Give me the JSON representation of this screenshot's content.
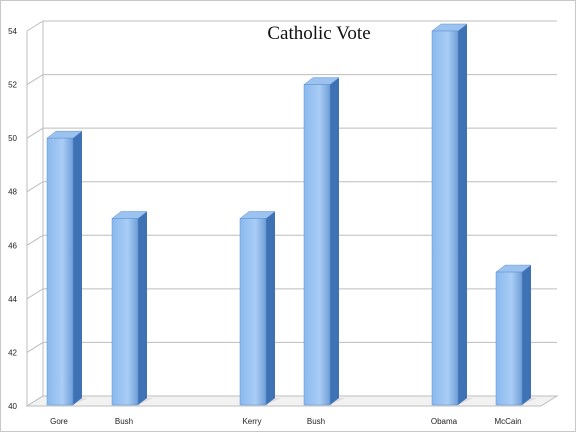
{
  "chart_data": {
    "type": "bar",
    "title": "Catholic Vote",
    "categories": [
      "Gore",
      "Bush",
      "Kerry",
      "Bush",
      "Obama",
      "McCain"
    ],
    "groups": [
      {
        "categories": [
          "Gore",
          "Bush"
        ],
        "values": [
          50,
          47
        ]
      },
      {
        "categories": [
          "Kerry",
          "Bush"
        ],
        "values": [
          47,
          52
        ]
      },
      {
        "categories": [
          "Obama",
          "McCain"
        ],
        "values": [
          54,
          45
        ]
      }
    ],
    "values": [
      50,
      47,
      47,
      52,
      54,
      45
    ],
    "ylim": [
      40,
      54
    ],
    "yticks": [
      "40",
      "42",
      "44",
      "46",
      "48",
      "50",
      "52",
      "54"
    ],
    "xlabel": "",
    "ylabel": "",
    "grid": true,
    "legend": "none",
    "bar_color": "#6fa8e8",
    "bar_side_color": "#3f72b5",
    "bar_top_color": "#9cc3f0"
  }
}
